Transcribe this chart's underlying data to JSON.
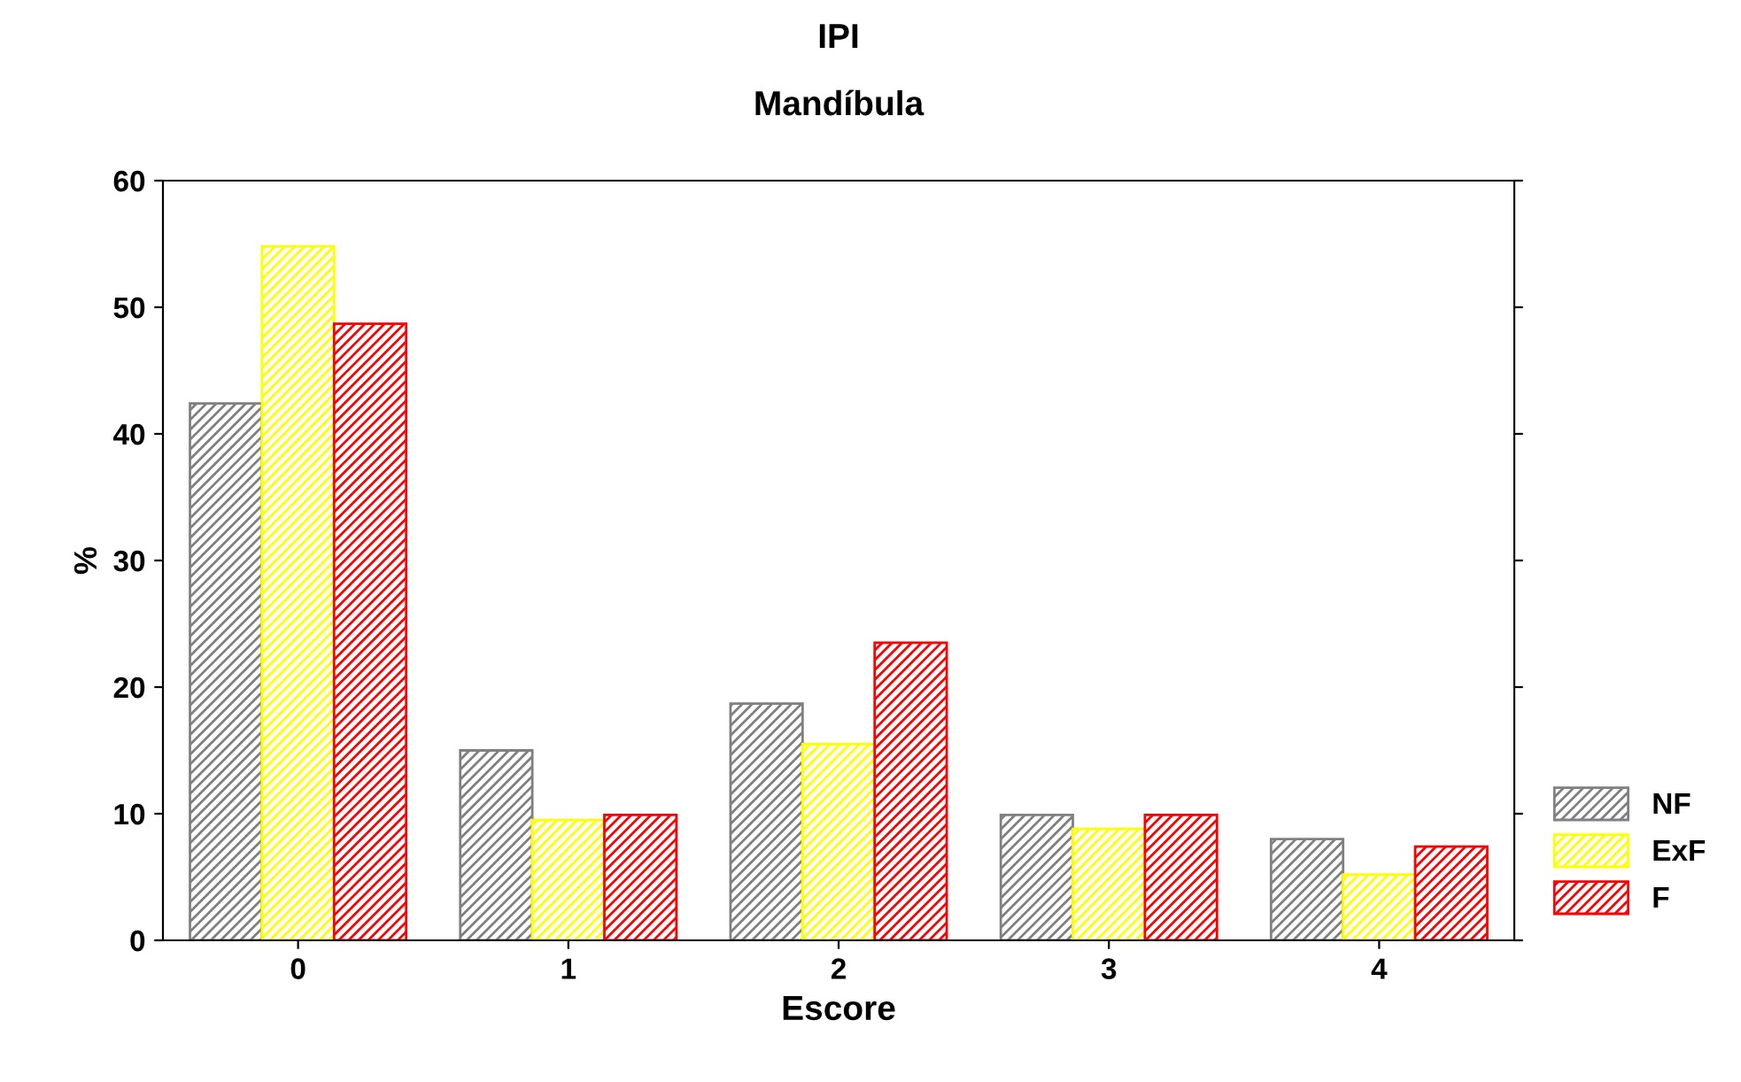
{
  "chart_data": {
    "type": "bar",
    "title": "IPI",
    "subtitle": "Mandíbula",
    "xlabel": "Escore",
    "ylabel": "%",
    "categories": [
      "0",
      "1",
      "2",
      "3",
      "4"
    ],
    "series": [
      {
        "name": "NF",
        "color": "#808080",
        "values": [
          42.4,
          15.0,
          18.7,
          9.9,
          8.0
        ]
      },
      {
        "name": "ExF",
        "color": "#ffff00",
        "values": [
          54.8,
          9.5,
          15.5,
          8.8,
          5.2
        ]
      },
      {
        "name": "F",
        "color": "#ff0000",
        "values": [
          48.7,
          9.9,
          23.5,
          9.9,
          7.4
        ]
      }
    ],
    "ylim": [
      0,
      60
    ],
    "yticks": [
      0,
      10,
      20,
      30,
      40,
      50,
      60
    ],
    "grid": false,
    "legend": "bottom right"
  }
}
